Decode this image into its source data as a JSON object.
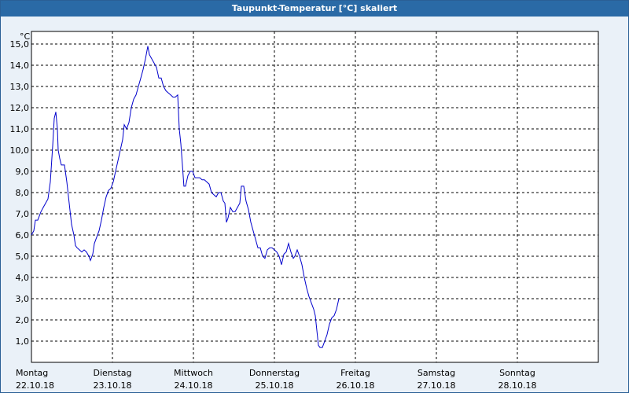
{
  "window": {
    "title": "Taupunkt-Temperatur [°C] skaliert"
  },
  "chart_data": {
    "type": "line",
    "title": "Taupunkt-Temperatur [°C] skaliert",
    "ylabel": "°C",
    "xlabel": "",
    "ylim": [
      0,
      15.5
    ],
    "xlim": [
      0,
      7
    ],
    "grid": true,
    "y_ticks": [
      "1,0",
      "2,0",
      "3,0",
      "4,0",
      "5,0",
      "6,0",
      "7,0",
      "8,0",
      "9,0",
      "10,0",
      "11,0",
      "12,0",
      "13,0",
      "14,0",
      "15,0"
    ],
    "x_ticks": [
      {
        "day": "Montag",
        "date": "22.10.18"
      },
      {
        "day": "Dienstag",
        "date": "23.10.18"
      },
      {
        "day": "Mittwoch",
        "date": "24.10.18"
      },
      {
        "day": "Donnerstag",
        "date": "25.10.18"
      },
      {
        "day": "Freitag",
        "date": "26.10.18"
      },
      {
        "day": "Samstag",
        "date": "27.10.18"
      },
      {
        "day": "Sonntag",
        "date": "28.10.18"
      }
    ],
    "series": [
      {
        "color": "#0000cc",
        "points": [
          [
            0.0,
            6.0
          ],
          [
            0.029,
            6.2
          ],
          [
            0.049,
            6.7
          ],
          [
            0.078,
            6.7
          ],
          [
            0.117,
            7.1
          ],
          [
            0.146,
            7.3
          ],
          [
            0.175,
            7.5
          ],
          [
            0.204,
            7.7
          ],
          [
            0.233,
            8.5
          ],
          [
            0.262,
            10.2
          ],
          [
            0.282,
            11.5
          ],
          [
            0.301,
            11.8
          ],
          [
            0.32,
            11.0
          ],
          [
            0.33,
            10.0
          ],
          [
            0.35,
            9.6
          ],
          [
            0.369,
            9.3
          ],
          [
            0.408,
            9.3
          ],
          [
            0.437,
            8.5
          ],
          [
            0.466,
            7.5
          ],
          [
            0.495,
            6.5
          ],
          [
            0.524,
            6.0
          ],
          [
            0.544,
            5.5
          ],
          [
            0.563,
            5.4
          ],
          [
            0.592,
            5.3
          ],
          [
            0.621,
            5.2
          ],
          [
            0.65,
            5.3
          ],
          [
            0.68,
            5.2
          ],
          [
            0.709,
            5.0
          ],
          [
            0.728,
            4.8
          ],
          [
            0.757,
            5.1
          ],
          [
            0.777,
            5.6
          ],
          [
            0.806,
            5.9
          ],
          [
            0.835,
            6.2
          ],
          [
            0.864,
            6.7
          ],
          [
            0.893,
            7.3
          ],
          [
            0.922,
            7.8
          ],
          [
            0.951,
            8.1
          ],
          [
            0.981,
            8.2
          ],
          [
            1.01,
            8.5
          ],
          [
            1.039,
            9.0
          ],
          [
            1.068,
            9.5
          ],
          [
            1.097,
            10.0
          ],
          [
            1.126,
            10.5
          ],
          [
            1.146,
            11.2
          ],
          [
            1.175,
            11.0
          ],
          [
            1.204,
            11.3
          ],
          [
            1.233,
            12.0
          ],
          [
            1.262,
            12.4
          ],
          [
            1.291,
            12.6
          ],
          [
            1.32,
            13.0
          ],
          [
            1.35,
            13.4
          ],
          [
            1.379,
            13.8
          ],
          [
            1.408,
            14.3
          ],
          [
            1.437,
            14.9
          ],
          [
            1.456,
            14.5
          ],
          [
            1.485,
            14.3
          ],
          [
            1.515,
            14.1
          ],
          [
            1.544,
            13.9
          ],
          [
            1.573,
            13.4
          ],
          [
            1.602,
            13.4
          ],
          [
            1.631,
            13.0
          ],
          [
            1.66,
            12.8
          ],
          [
            1.689,
            12.7
          ],
          [
            1.718,
            12.6
          ],
          [
            1.748,
            12.5
          ],
          [
            1.777,
            12.5
          ],
          [
            1.806,
            12.6
          ],
          [
            1.825,
            11.0
          ],
          [
            1.845,
            10.3
          ],
          [
            1.864,
            9.3
          ],
          [
            1.883,
            8.3
          ],
          [
            1.903,
            8.3
          ],
          [
            1.932,
            8.8
          ],
          [
            1.961,
            9.0
          ],
          [
            1.99,
            9.0
          ],
          [
            2.019,
            8.7
          ],
          [
            2.049,
            8.7
          ],
          [
            2.078,
            8.7
          ],
          [
            2.107,
            8.6
          ],
          [
            2.136,
            8.6
          ],
          [
            2.165,
            8.5
          ],
          [
            2.194,
            8.4
          ],
          [
            2.223,
            8.0
          ],
          [
            2.252,
            7.9
          ],
          [
            2.282,
            7.8
          ],
          [
            2.311,
            8.0
          ],
          [
            2.34,
            8.0
          ],
          [
            2.369,
            7.6
          ],
          [
            2.388,
            7.5
          ],
          [
            2.408,
            6.6
          ],
          [
            2.427,
            6.8
          ],
          [
            2.456,
            7.3
          ],
          [
            2.485,
            7.1
          ],
          [
            2.515,
            7.1
          ],
          [
            2.544,
            7.3
          ],
          [
            2.573,
            7.5
          ],
          [
            2.592,
            8.3
          ],
          [
            2.621,
            8.3
          ],
          [
            2.65,
            7.6
          ],
          [
            2.68,
            7.2
          ],
          [
            2.709,
            6.6
          ],
          [
            2.738,
            6.2
          ],
          [
            2.767,
            5.8
          ],
          [
            2.796,
            5.4
          ],
          [
            2.825,
            5.4
          ],
          [
            2.854,
            5.0
          ],
          [
            2.883,
            4.9
          ],
          [
            2.913,
            5.3
          ],
          [
            2.942,
            5.4
          ],
          [
            2.971,
            5.4
          ],
          [
            3.0,
            5.3
          ],
          [
            3.029,
            5.2
          ],
          [
            3.058,
            5.0
          ],
          [
            3.087,
            4.6
          ],
          [
            3.117,
            5.1
          ],
          [
            3.146,
            5.2
          ],
          [
            3.175,
            5.6
          ],
          [
            3.204,
            5.2
          ],
          [
            3.233,
            4.9
          ],
          [
            3.252,
            5.0
          ],
          [
            3.282,
            5.3
          ],
          [
            3.311,
            5.0
          ],
          [
            3.34,
            4.6
          ],
          [
            3.369,
            4.0
          ],
          [
            3.398,
            3.5
          ],
          [
            3.427,
            3.1
          ],
          [
            3.456,
            2.8
          ],
          [
            3.485,
            2.5
          ],
          [
            3.505,
            2.2
          ],
          [
            3.524,
            1.5
          ],
          [
            3.544,
            0.8
          ],
          [
            3.563,
            0.7
          ],
          [
            3.592,
            0.7
          ],
          [
            3.621,
            1.0
          ],
          [
            3.65,
            1.3
          ],
          [
            3.68,
            1.8
          ],
          [
            3.709,
            2.1
          ],
          [
            3.738,
            2.2
          ],
          [
            3.767,
            2.5
          ],
          [
            3.796,
            3.0
          ]
        ]
      }
    ]
  }
}
